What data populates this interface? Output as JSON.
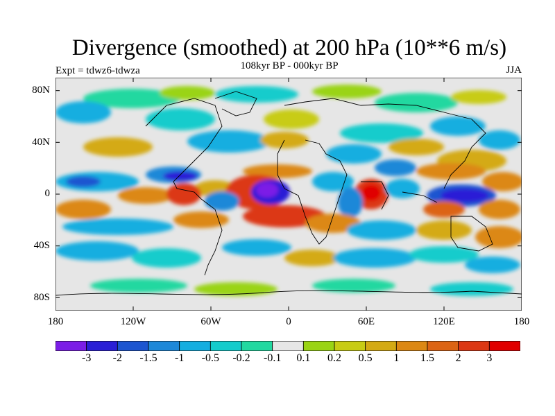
{
  "title": "Divergence (smoothed) at 200 hPa (10**6 m/s)",
  "experiment": "Expt = tdwz6-tdwza",
  "period": "108kyr BP - 000kyr BP",
  "season": "JJA",
  "lat_ticks": [
    "80N",
    "40N",
    "0",
    "40S",
    "80S"
  ],
  "lon_ticks": [
    "180",
    "120W",
    "60W",
    "0",
    "60E",
    "120E",
    "180"
  ],
  "colorbar": {
    "colors": [
      "#7b1ee6",
      "#2a1fd6",
      "#1c55d0",
      "#1e88d8",
      "#14aee0",
      "#14cccc",
      "#22d8a0",
      "#e6e6e6",
      "#9ad414",
      "#c8cc14",
      "#d4aa14",
      "#dc8814",
      "#dc6414",
      "#dc3814",
      "#e00000"
    ],
    "labels": [
      "-3",
      "-2",
      "-1.5",
      "-1",
      "-0.5",
      "-0.2",
      "-0.1",
      "0.1",
      "0.2",
      "0.5",
      "1",
      "1.5",
      "2",
      "3"
    ]
  }
}
